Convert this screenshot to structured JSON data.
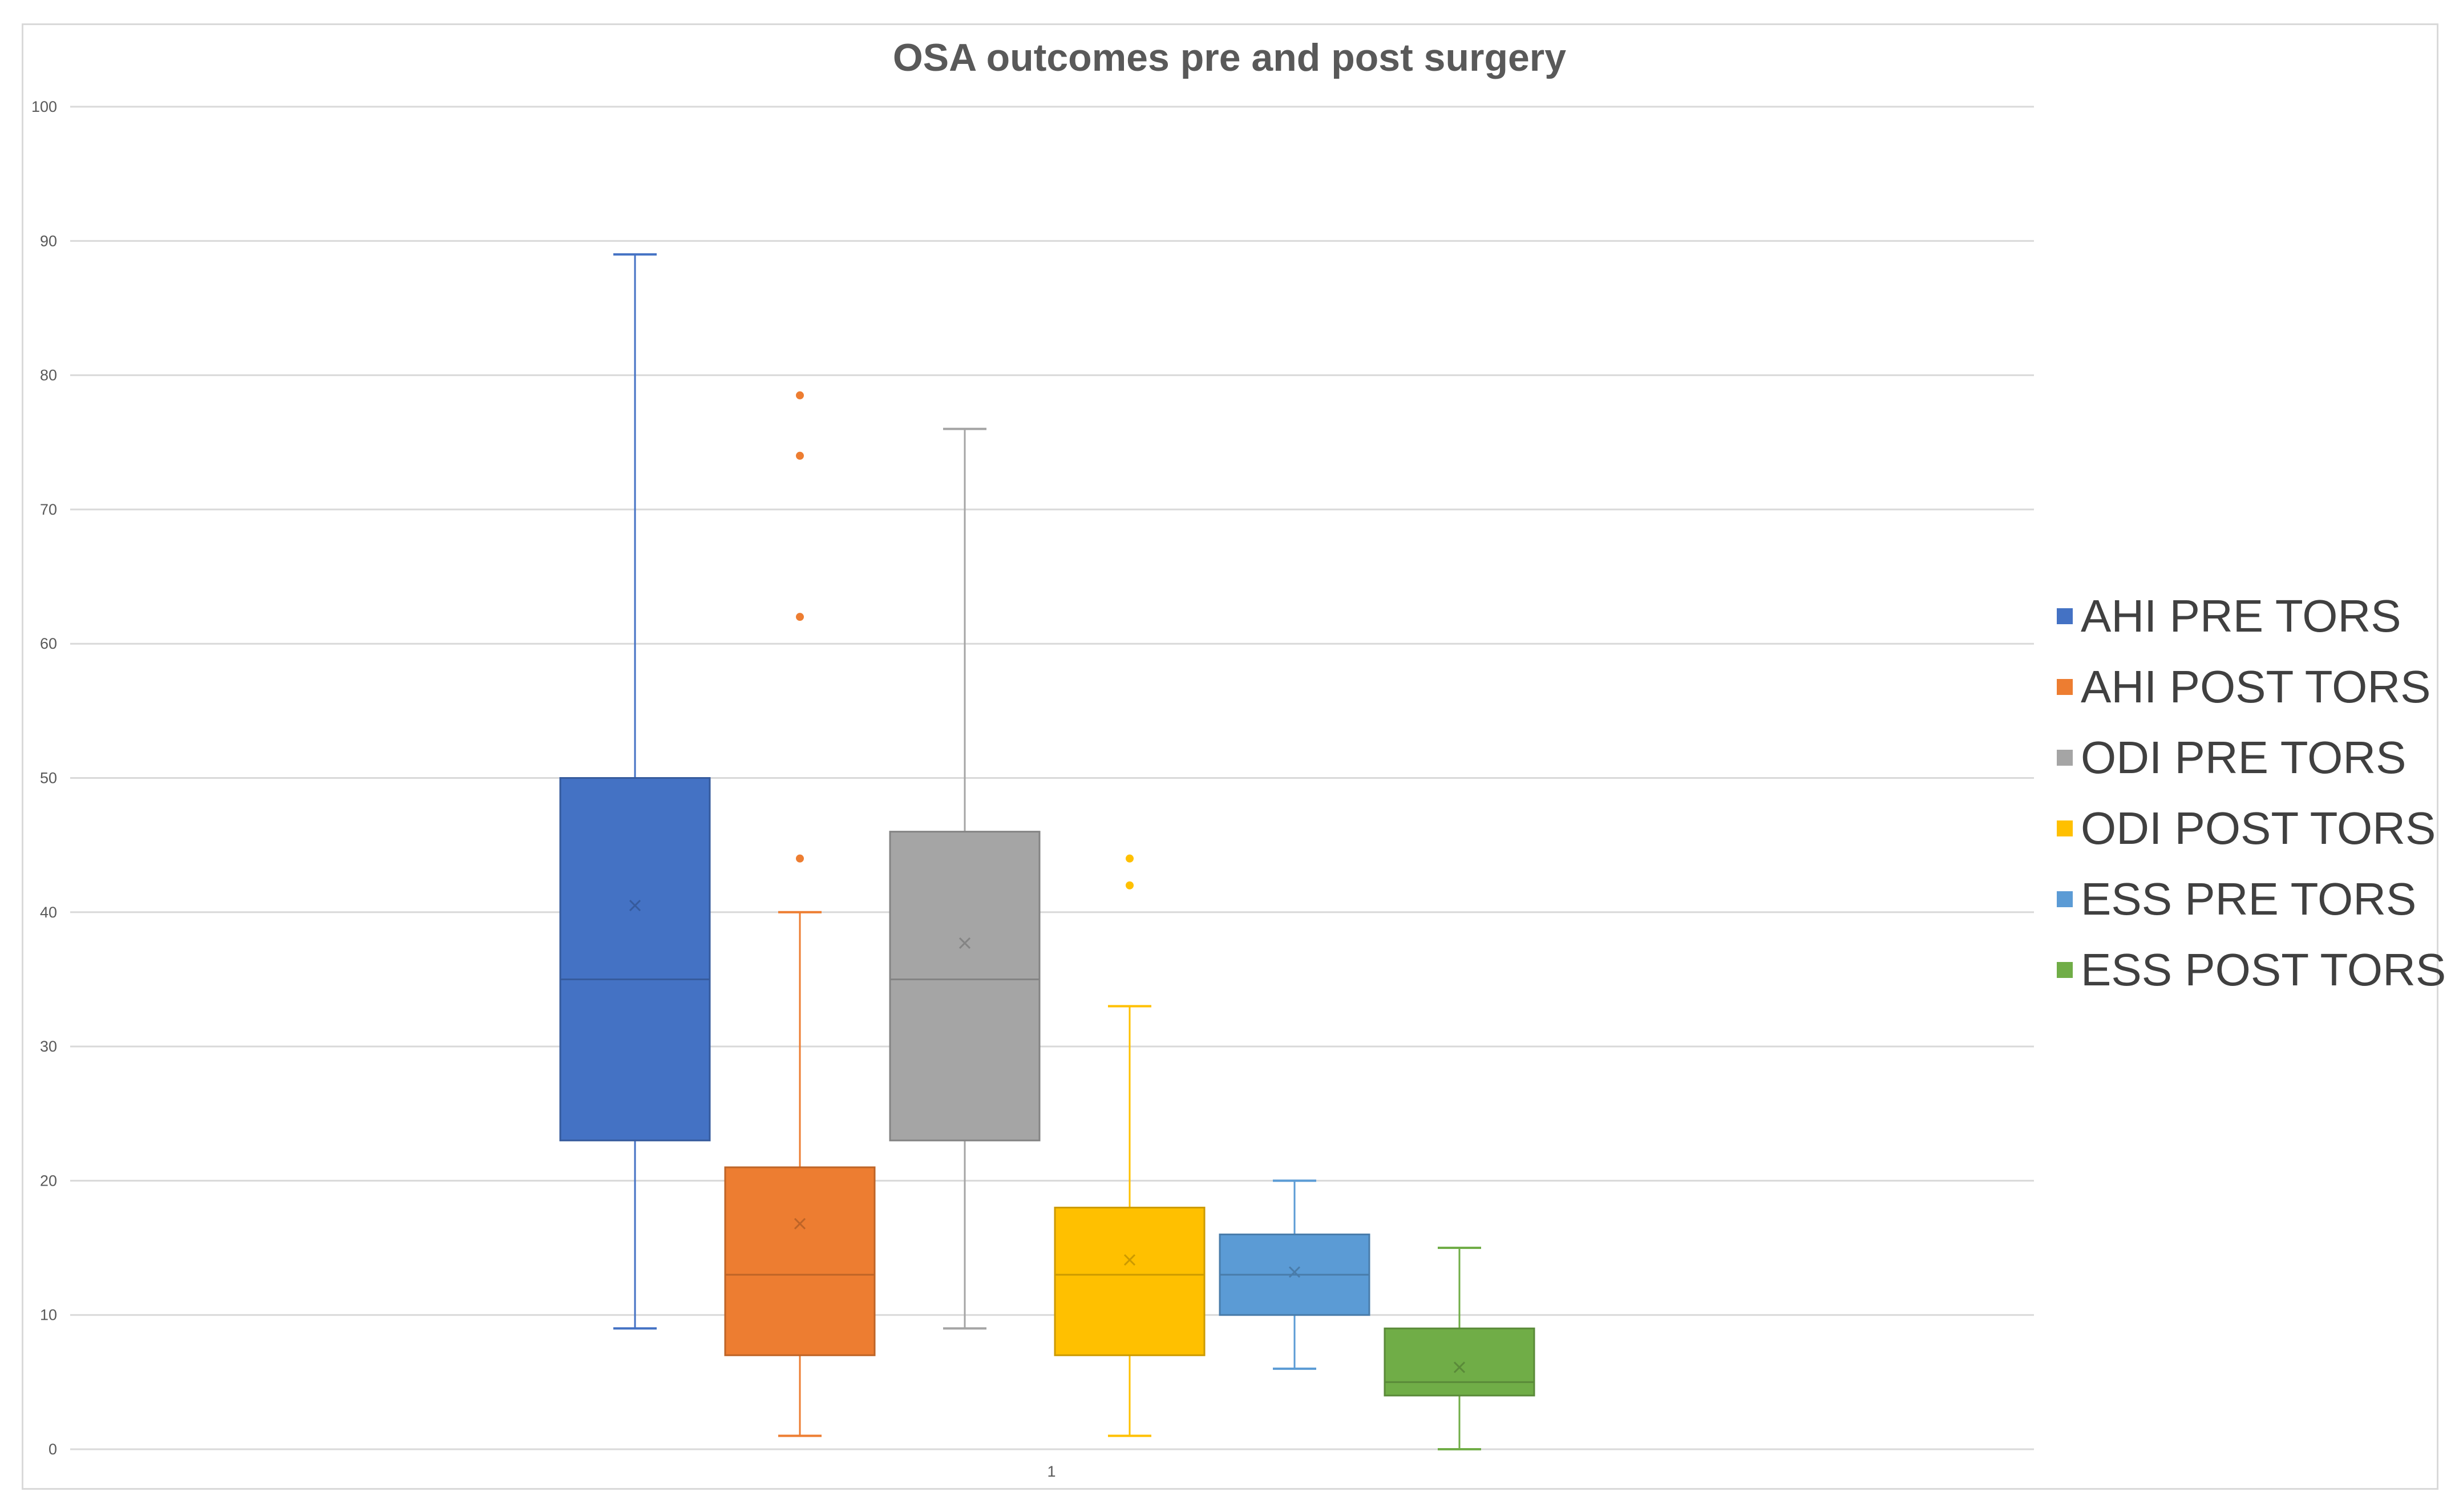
{
  "chart_data": {
    "type": "boxplot",
    "title": "OSA outcomes pre and post surgery",
    "xlabel": "",
    "ylabel": "",
    "categories": [
      "1"
    ],
    "ylim": [
      0,
      100
    ],
    "yticks": [
      0,
      10,
      20,
      30,
      40,
      50,
      60,
      70,
      80,
      90,
      100
    ],
    "grid": true,
    "legend_position": "right",
    "series": [
      {
        "name": "AHI PRE TORS",
        "color": "#4472C4",
        "min": 9,
        "q1": 23,
        "median": 35,
        "q3": 50,
        "max": 89,
        "mean": 40.5,
        "outliers": []
      },
      {
        "name": "AHI POST TORS",
        "color": "#ED7D31",
        "min": 1,
        "q1": 7,
        "median": 13,
        "q3": 21,
        "max": 40,
        "mean": 16.8,
        "outliers": [
          44,
          62,
          74,
          78.5
        ]
      },
      {
        "name": "ODI PRE TORS",
        "color": "#A5A5A5",
        "min": 9,
        "q1": 23,
        "median": 35,
        "q3": 46,
        "max": 76,
        "mean": 37.7,
        "outliers": []
      },
      {
        "name": "ODI POST TORS",
        "color": "#FFC000",
        "min": 1,
        "q1": 7,
        "median": 13,
        "q3": 18,
        "max": 33,
        "mean": 14.1,
        "outliers": [
          42,
          44
        ]
      },
      {
        "name": "ESS PRE TORS",
        "color": "#5B9BD5",
        "min": 6,
        "q1": 10,
        "median": 13,
        "q3": 16,
        "max": 20,
        "mean": 13.2,
        "outliers": []
      },
      {
        "name": "ESS POST TORS",
        "color": "#70AD47",
        "min": 0,
        "q1": 4,
        "median": 5,
        "q3": 9,
        "max": 15,
        "mean": 6.1,
        "outliers": []
      }
    ]
  }
}
